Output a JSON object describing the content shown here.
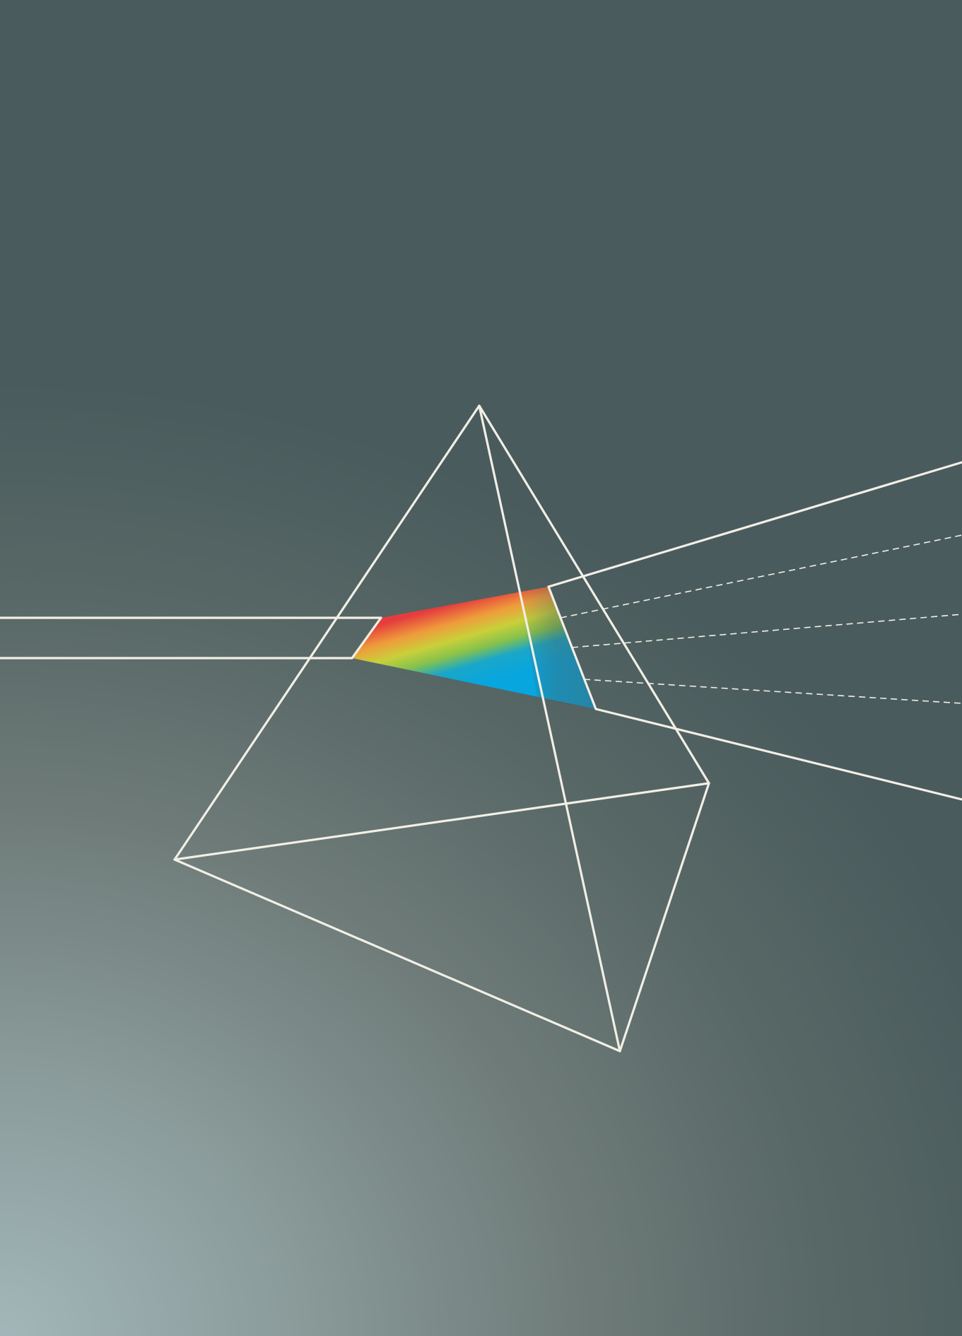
{
  "scene": {
    "background_colors": {
      "light_corner": "#a3b6b9",
      "mid": "#6e7b79",
      "dark": "#4a5b5d"
    },
    "line_color": "#f2efe6",
    "spectrum_colors": [
      "#e53d3d",
      "#eea03a",
      "#c9d03a",
      "#8cc24a",
      "#19a8c9",
      "#08a6df"
    ]
  }
}
